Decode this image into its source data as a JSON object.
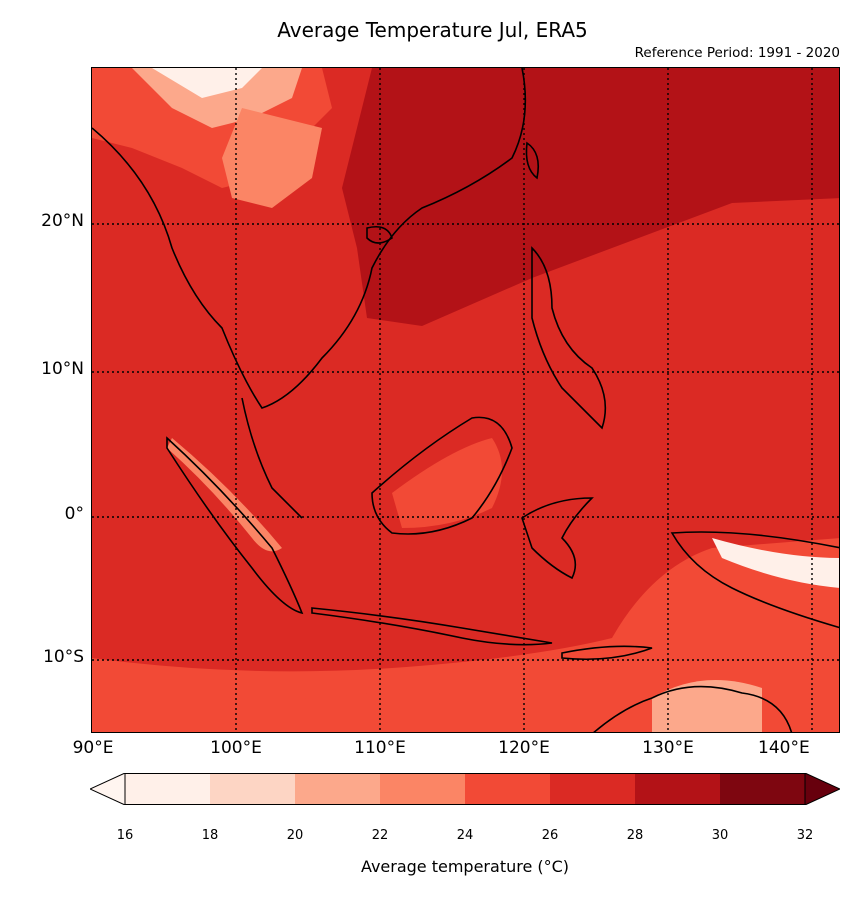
{
  "title": "Average Temperature Jul, ERA5",
  "subtitle": "Reference Period: 1991 - 2020",
  "map": {
    "type": "filled contour map",
    "lon_range": [
      90,
      142
    ],
    "lat_range": [
      -15,
      31
    ],
    "lat_ticks": [
      {
        "value": 20,
        "label": "20°N"
      },
      {
        "value": 10,
        "label": "10°N"
      },
      {
        "value": 0,
        "label": "0°"
      },
      {
        "value": -10,
        "label": "10°S"
      }
    ],
    "lon_ticks": [
      {
        "value": 90,
        "label": "90°E"
      },
      {
        "value": 100,
        "label": "100°E"
      },
      {
        "value": 110,
        "label": "110°E"
      },
      {
        "value": 120,
        "label": "120°E"
      },
      {
        "value": 130,
        "label": "130°E"
      },
      {
        "value": 140,
        "label": "140°E"
      }
    ],
    "gridlines": "dotted",
    "coastlines": true,
    "country_borders": true
  },
  "colorbar": {
    "label": "Average temperature (°C)",
    "levels": [
      16,
      18,
      20,
      22,
      24,
      26,
      28,
      30,
      32
    ],
    "colors": [
      "#fff0e9",
      "#fdd5c4",
      "#fca88b",
      "#fb8565",
      "#f24a36",
      "#db2a24",
      "#b31217",
      "#7e0610"
    ],
    "under_color": "#fff5f0",
    "over_color": "#67000d",
    "extend": "both"
  }
}
